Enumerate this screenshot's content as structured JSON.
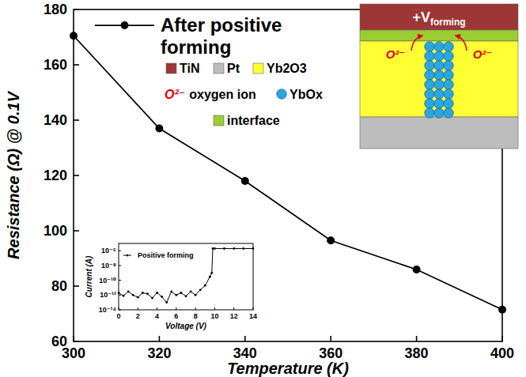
{
  "chart_data": [
    {
      "type": "line",
      "x_label": "Temperature (K)",
      "y_label": "Resistance (Ω) @ 0.1V",
      "x": [
        300,
        320,
        340,
        360,
        380,
        400
      ],
      "series": [
        {
          "name": "After positive forming",
          "color": "#000000",
          "marker": "circle",
          "line_style": "solid",
          "values": [
            170.5,
            137,
            118,
            96.5,
            86,
            71.5
          ]
        }
      ],
      "xlim": [
        300,
        400
      ],
      "xticks": [
        300,
        320,
        340,
        360,
        380,
        400
      ],
      "ylim": [
        60,
        180
      ],
      "yticks": [
        60,
        80,
        100,
        120,
        140,
        160,
        180
      ],
      "legend": "upper left"
    },
    {
      "type": "line",
      "x_label": "Voltage (V)",
      "y_label": "Current (A)",
      "log": "y",
      "x": [
        0,
        0.5,
        1,
        1.5,
        2,
        2.5,
        3,
        3.5,
        4,
        4.5,
        5,
        5.5,
        6,
        6.5,
        7,
        7.5,
        8,
        8.5,
        9,
        9.5,
        9.7,
        9.8,
        10,
        11,
        12,
        13,
        14
      ],
      "series": [
        {
          "name": "Positive forming",
          "color": "#000000",
          "marker": "circle",
          "line_style": "solid",
          "values": [
            2e-12,
            8e-13,
            3e-12,
            1e-12,
            5e-13,
            2e-12,
            1.5e-12,
            4e-13,
            2e-12,
            6e-13,
            1e-13,
            3e-12,
            1e-12,
            2e-12,
            7e-13,
            3e-12,
            1e-12,
            5e-12,
            2e-11,
            3e-10,
            1e-09,
            2e-06,
            2e-06,
            2e-06,
            2e-06,
            2e-06,
            2e-06
          ]
        }
      ],
      "xlim": [
        0,
        14
      ],
      "xticks": [
        0,
        2,
        4,
        6,
        8,
        10,
        12,
        14
      ],
      "ylim": [
        1e-14,
        1e-05
      ],
      "yticks": [
        {
          "value": 1e-14,
          "label": "10⁻¹⁴"
        },
        {
          "value": 1e-12,
          "label": "10⁻¹²"
        },
        {
          "value": 1e-10,
          "label": "10⁻¹⁰"
        },
        {
          "value": 1e-08,
          "label": "10⁻⁸"
        },
        {
          "value": 1e-06,
          "label": "10⁻⁶"
        }
      ],
      "legend": "upper left"
    }
  ],
  "diagram": {
    "voltage_label": "+V",
    "voltage_subscript": "forming",
    "layers": [
      {
        "name": "TiN",
        "color": "#9e3636"
      },
      {
        "name": "interface",
        "color": "#9acd32"
      },
      {
        "name": "Yb2O3",
        "color": "#ffff33"
      },
      {
        "name": "Pt",
        "color": "#bdbdbd"
      }
    ],
    "filament_color": "#29a8e0",
    "ion_labels": [
      "O²⁻",
      "O²⁻"
    ],
    "ion_color": "#e00000",
    "legend": [
      {
        "label": "TiN",
        "swatch": "#9e3636"
      },
      {
        "label": "Pt",
        "swatch": "#bdbdbd"
      },
      {
        "label": "Yb2O3",
        "swatch": "#ffff33"
      },
      {
        "symbol": "O²⁻",
        "label": "oxygen ion",
        "color": "#e00000"
      },
      {
        "label": "YbOx",
        "marker": "circle",
        "color": "#29a8e0"
      },
      {
        "label": "interface",
        "swatch": "#9acd32"
      }
    ]
  }
}
